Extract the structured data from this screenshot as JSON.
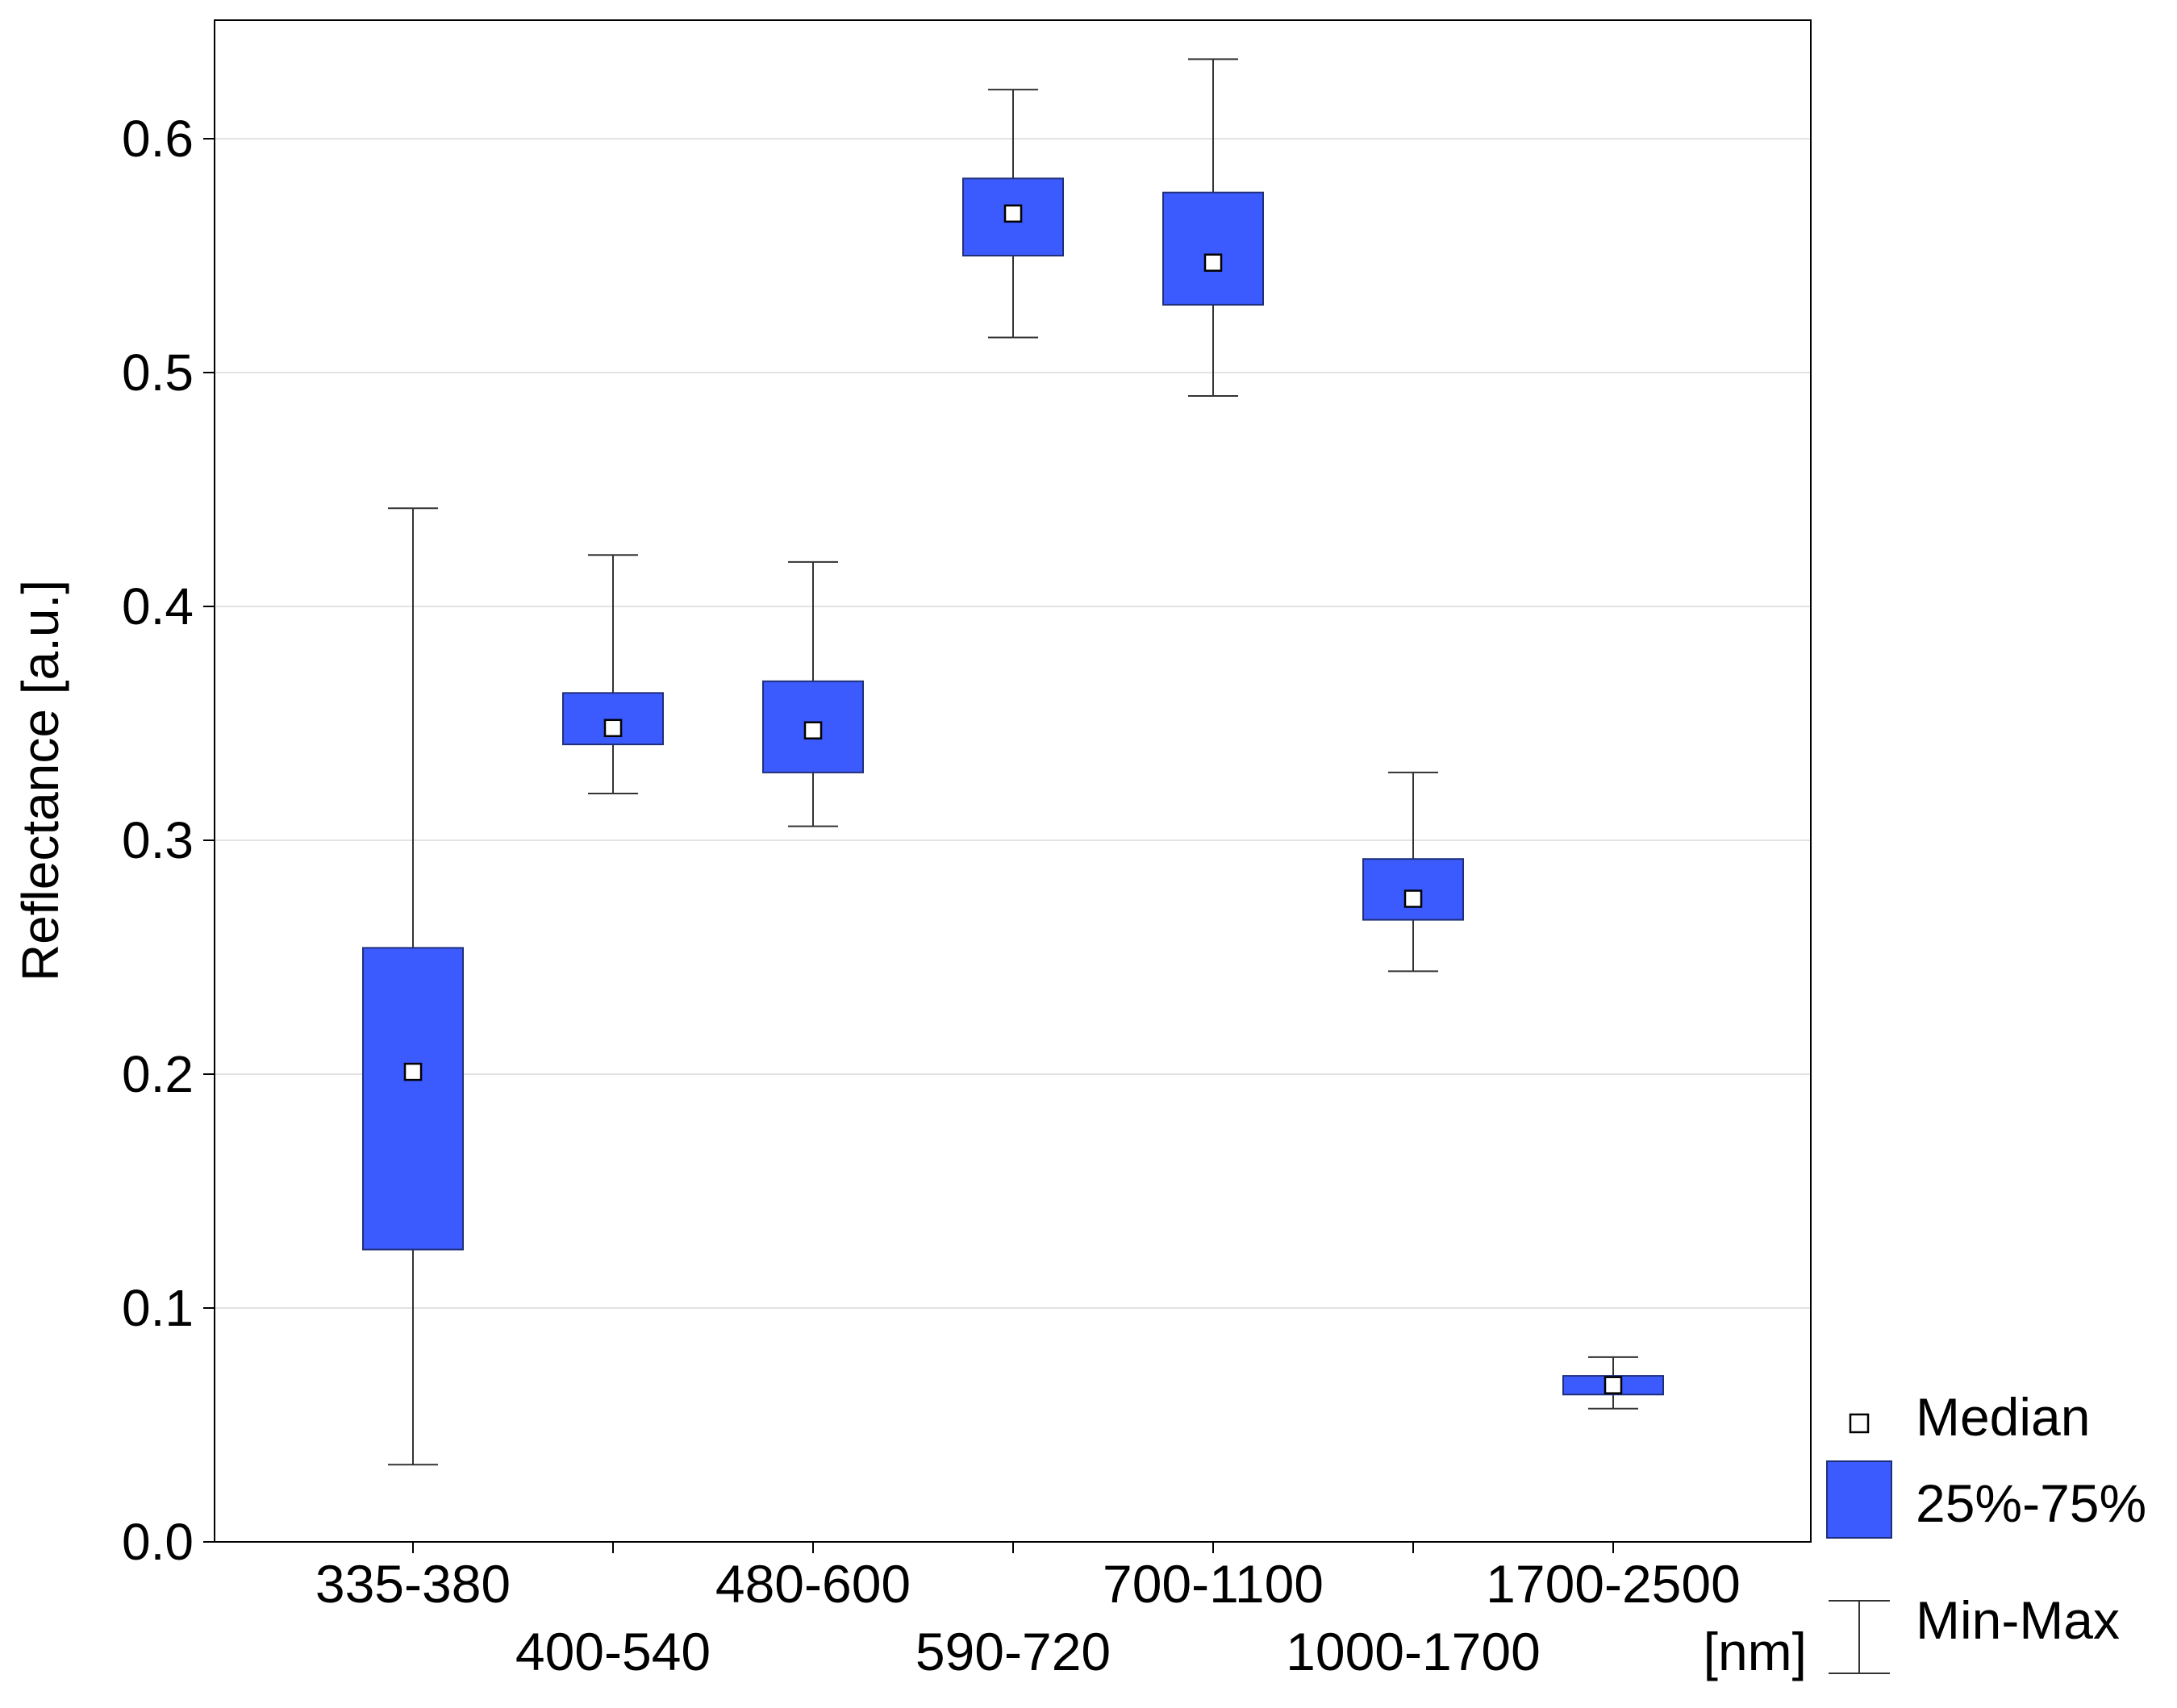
{
  "chart_data": {
    "type": "box",
    "title": "",
    "xlabel": "[nm]",
    "ylabel": "Reflectance [a.u.]",
    "ylim": [
      0.0,
      0.65
    ],
    "yticks": [
      "0.0",
      "0.1",
      "0.2",
      "0.3",
      "0.4",
      "0.5",
      "0.6"
    ],
    "grid": true,
    "colors": {
      "box_fill": "#3b5bff",
      "box_edge": "#1f2f7a",
      "grid": "#e3e3e3",
      "axis": "#000000"
    },
    "categories": [
      "335-380",
      "400-540",
      "480-600",
      "590-720",
      "700-1100",
      "1000-1700",
      "1700-2500"
    ],
    "series": [
      {
        "category": "335-380",
        "min": 0.033,
        "q1": 0.125,
        "median": 0.201,
        "q3": 0.254,
        "max": 0.442
      },
      {
        "category": "400-540",
        "min": 0.32,
        "q1": 0.341,
        "median": 0.348,
        "q3": 0.363,
        "max": 0.422
      },
      {
        "category": "480-600",
        "min": 0.306,
        "q1": 0.329,
        "median": 0.347,
        "q3": 0.368,
        "max": 0.419
      },
      {
        "category": "590-720",
        "min": 0.515,
        "q1": 0.55,
        "median": 0.568,
        "q3": 0.583,
        "max": 0.621
      },
      {
        "category": "700-1100",
        "min": 0.49,
        "q1": 0.529,
        "median": 0.547,
        "q3": 0.577,
        "max": 0.634
      },
      {
        "category": "1000-1700",
        "min": 0.244,
        "q1": 0.266,
        "median": 0.275,
        "q3": 0.292,
        "max": 0.329
      },
      {
        "category": "1700-2500",
        "min": 0.057,
        "q1": 0.063,
        "median": 0.067,
        "q3": 0.071,
        "max": 0.079
      }
    ],
    "legend": {
      "position": "bottom-right",
      "items": [
        {
          "label": "Median",
          "symbol": "median"
        },
        {
          "label": "25%-75%",
          "symbol": "box"
        },
        {
          "label": "Min-Max",
          "symbol": "whisker"
        }
      ]
    }
  }
}
